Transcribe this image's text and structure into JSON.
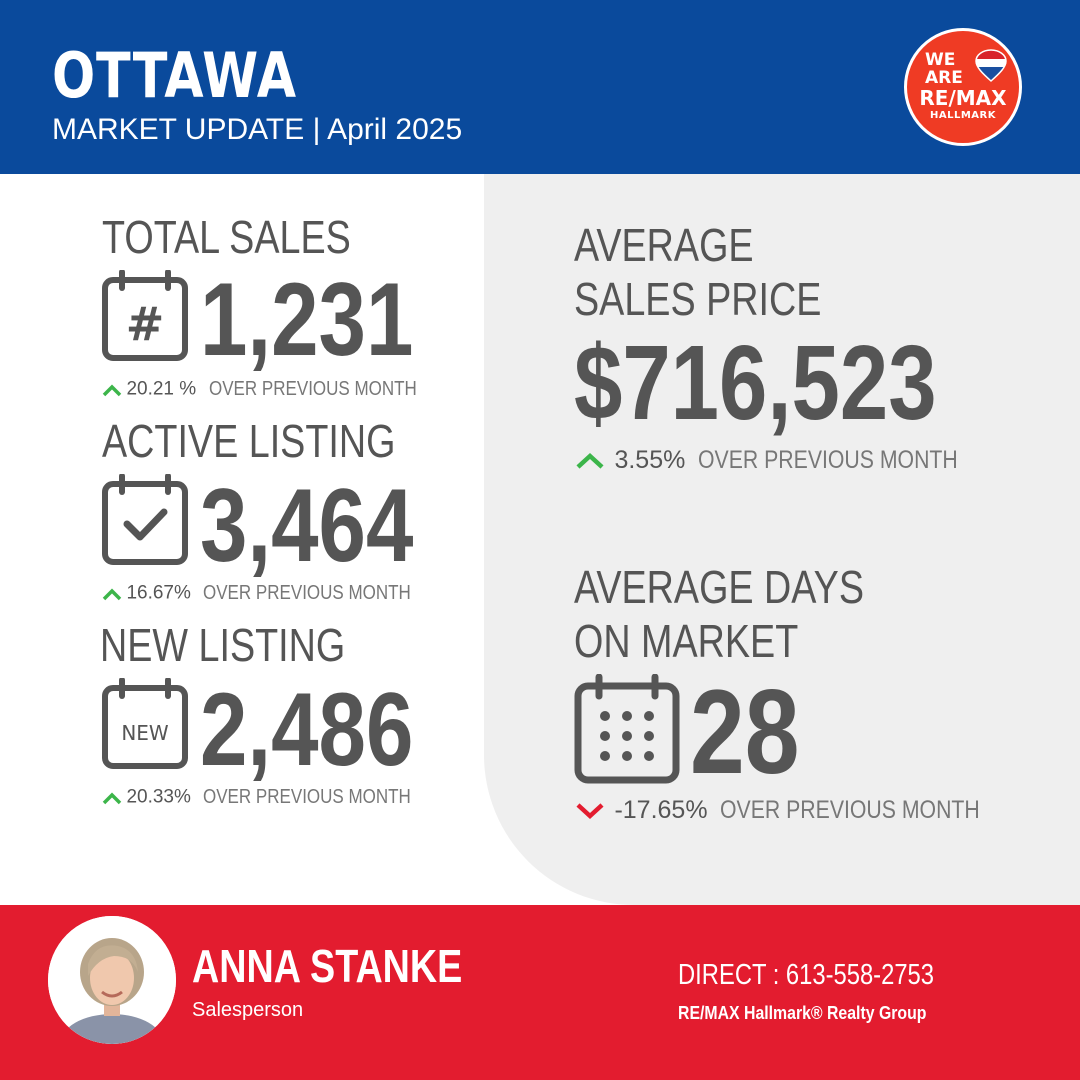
{
  "header": {
    "city": "OTTAWA",
    "subtitle": "MARKET UPDATE | April 2025",
    "logo": {
      "line1": "WE",
      "line2": "ARE",
      "line3": "RE/MAX",
      "line4": "HALLMARK",
      "icon": "hot-air-balloon-icon"
    }
  },
  "stats": {
    "total_sales": {
      "label": "TOTAL SALES",
      "value": "1,231",
      "change": "20.21 %",
      "direction": "up",
      "suffix": "OVER PREVIOUS MONTH",
      "icon": "calendar-hash-icon",
      "icon_text": "#"
    },
    "active_listing": {
      "label": "ACTIVE LISTING",
      "value": "3,464",
      "change": "16.67%",
      "direction": "up",
      "suffix": "OVER PREVIOUS MONTH",
      "icon": "calendar-check-icon"
    },
    "new_listing": {
      "label": "NEW LISTING",
      "value": "2,486",
      "change": "20.33%",
      "direction": "up",
      "suffix": "OVER PREVIOUS MONTH",
      "icon": "calendar-new-icon",
      "icon_text": "NEW"
    },
    "avg_price": {
      "label_line1": "AVERAGE",
      "label_line2": "SALES PRICE",
      "value": "$716,523",
      "change": "3.55%",
      "direction": "up",
      "suffix": "OVER PREVIOUS MONTH"
    },
    "avg_days": {
      "label_line1": "AVERAGE DAYS",
      "label_line2": "ON MARKET",
      "value": "28",
      "change": "-17.65%",
      "direction": "down",
      "suffix": "OVER PREVIOUS MONTH",
      "icon": "calendar-dots-icon"
    }
  },
  "agent": {
    "name": "ANNA STANKE",
    "title": "Salesperson",
    "direct": "DIRECT : 613-558-2753",
    "brokerage": "RE/MAX Hallmark® Realty Group"
  },
  "colors": {
    "header_blue": "#0a4a9c",
    "footer_red": "#e31c2f",
    "up_green": "#3cb54a",
    "down_red": "#e31c2f",
    "text_gray": "#555555",
    "panel_gray": "#efefef"
  }
}
